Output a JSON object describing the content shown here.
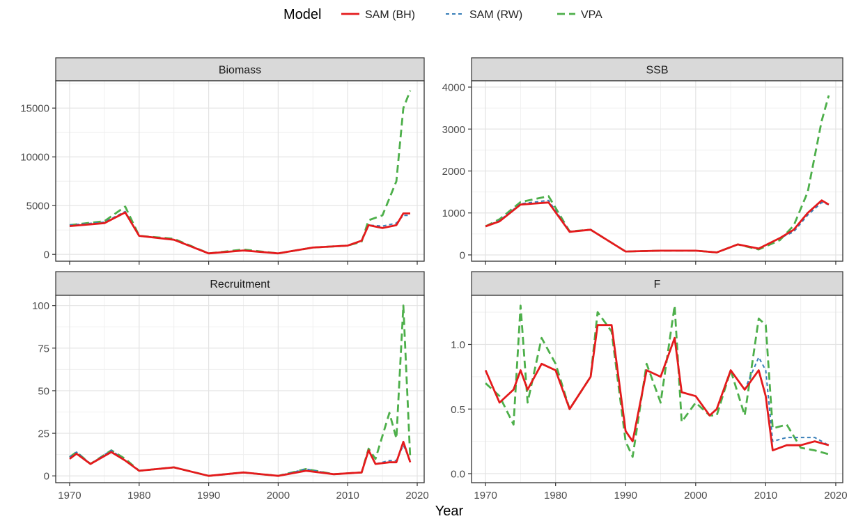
{
  "legend": {
    "title": "Model",
    "position": "top",
    "items": [
      {
        "label": "SAM (BH)",
        "color": "#e41a1c",
        "dash": "solid"
      },
      {
        "label": "SAM (RW)",
        "color": "#377eb8",
        "dash": "dotted"
      },
      {
        "label": "VPA",
        "color": "#4daf4a",
        "dash": "dashed"
      }
    ]
  },
  "xlabel": "Year",
  "chart_data": [
    {
      "type": "line",
      "title": "Biomass",
      "x": [
        1970,
        1975,
        1978,
        1980,
        1985,
        1990,
        1995,
        2000,
        2005,
        2010,
        2012,
        2013,
        2015,
        2017,
        2018,
        2019
      ],
      "xlim": [
        1968,
        2021
      ],
      "xticks": [
        1970,
        1980,
        1990,
        2000,
        2010,
        2020
      ],
      "ylim": [
        -700,
        17800
      ],
      "yticks": [
        0,
        5000,
        10000,
        15000
      ],
      "grid": true,
      "series": [
        {
          "name": "SAM (BH)",
          "values": [
            2900,
            3200,
            4300,
            1900,
            1500,
            100,
            400,
            100,
            700,
            900,
            1400,
            3000,
            2700,
            3000,
            4200,
            4200
          ]
        },
        {
          "name": "SAM (RW)",
          "values": [
            3000,
            3300,
            4400,
            1900,
            1500,
            100,
            400,
            100,
            700,
            900,
            1400,
            3000,
            2900,
            3200,
            4000,
            4000
          ]
        },
        {
          "name": "VPA",
          "values": [
            3000,
            3400,
            4900,
            1900,
            1600,
            100,
            500,
            100,
            700,
            900,
            1300,
            3500,
            4000,
            7500,
            15000,
            16800
          ]
        }
      ]
    },
    {
      "type": "line",
      "title": "SSB",
      "x": [
        1970,
        1972,
        1975,
        1979,
        1982,
        1985,
        1990,
        1995,
        2000,
        2003,
        2006,
        2009,
        2012,
        2014,
        2016,
        2018,
        2019
      ],
      "xlim": [
        1968,
        2021
      ],
      "xticks": [
        1970,
        1980,
        1990,
        2000,
        2010,
        2020
      ],
      "ylim": [
        -150,
        4150
      ],
      "yticks": [
        0,
        1000,
        2000,
        3000,
        4000
      ],
      "grid": true,
      "series": [
        {
          "name": "SAM (BH)",
          "values": [
            680,
            800,
            1200,
            1250,
            550,
            600,
            80,
            100,
            100,
            60,
            250,
            150,
            400,
            600,
            1000,
            1300,
            1200
          ]
        },
        {
          "name": "SAM (RW)",
          "values": [
            680,
            820,
            1220,
            1300,
            560,
            600,
            80,
            100,
            100,
            60,
            250,
            150,
            400,
            550,
            950,
            1250,
            1200
          ]
        },
        {
          "name": "VPA",
          "values": [
            680,
            850,
            1260,
            1400,
            560,
            600,
            80,
            100,
            100,
            60,
            250,
            130,
            350,
            700,
            1500,
            3200,
            3800
          ]
        }
      ]
    },
    {
      "type": "line",
      "title": "Recruitment",
      "x": [
        1970,
        1971,
        1973,
        1976,
        1978,
        1980,
        1985,
        1990,
        1995,
        2000,
        2004,
        2008,
        2012,
        2013,
        2014,
        2016,
        2017,
        2018,
        2019
      ],
      "xlim": [
        1968,
        2021
      ],
      "xticks": [
        1970,
        1980,
        1990,
        2000,
        2010,
        2020
      ],
      "ylim": [
        -4,
        106
      ],
      "yticks": [
        0,
        25,
        50,
        75,
        100
      ],
      "grid": true,
      "series": [
        {
          "name": "SAM (BH)",
          "values": [
            10,
            13,
            7,
            14,
            9,
            3,
            5,
            0,
            2,
            0,
            3,
            1,
            2,
            15,
            7,
            8,
            8,
            20,
            8
          ]
        },
        {
          "name": "SAM (RW)",
          "values": [
            11,
            14,
            7,
            15,
            9,
            3,
            5,
            0,
            2,
            0,
            4,
            1,
            2,
            15,
            7,
            9,
            9,
            18,
            9
          ]
        },
        {
          "name": "VPA",
          "values": [
            11,
            14,
            7,
            15,
            10,
            3,
            5,
            0,
            2,
            0,
            4,
            1,
            2,
            16,
            10,
            37,
            22,
            100,
            10
          ]
        }
      ]
    },
    {
      "type": "line",
      "title": "F",
      "x": [
        1970,
        1972,
        1974,
        1975,
        1976,
        1978,
        1980,
        1982,
        1985,
        1986,
        1988,
        1990,
        1991,
        1993,
        1995,
        1997,
        1998,
        2000,
        2002,
        2003,
        2005,
        2007,
        2009,
        2010,
        2011,
        2013,
        2015,
        2017,
        2019
      ],
      "xlim": [
        1968,
        2021
      ],
      "xticks": [
        1970,
        1980,
        1990,
        2000,
        2010,
        2020
      ],
      "ylim": [
        -0.07,
        1.38
      ],
      "yticks": [
        0.0,
        0.5,
        1.0
      ],
      "ytick_labels": [
        "0.0",
        "0.5",
        "1.0"
      ],
      "grid": true,
      "series": [
        {
          "name": "SAM (BH)",
          "values": [
            0.8,
            0.55,
            0.65,
            0.8,
            0.65,
            0.85,
            0.8,
            0.5,
            0.75,
            1.15,
            1.15,
            0.33,
            0.25,
            0.8,
            0.75,
            1.05,
            0.63,
            0.6,
            0.45,
            0.5,
            0.8,
            0.65,
            0.8,
            0.6,
            0.18,
            0.22,
            0.22,
            0.25,
            0.22
          ]
        },
        {
          "name": "SAM (RW)",
          "values": [
            0.8,
            0.55,
            0.65,
            0.8,
            0.65,
            0.85,
            0.8,
            0.5,
            0.75,
            1.15,
            1.15,
            0.33,
            0.25,
            0.8,
            0.75,
            1.05,
            0.63,
            0.6,
            0.45,
            0.5,
            0.8,
            0.65,
            0.9,
            0.8,
            0.25,
            0.28,
            0.28,
            0.28,
            0.22
          ]
        },
        {
          "name": "VPA",
          "values": [
            0.7,
            0.6,
            0.38,
            1.3,
            0.55,
            1.05,
            0.85,
            0.5,
            0.75,
            1.25,
            1.1,
            0.25,
            0.13,
            0.85,
            0.55,
            1.3,
            0.4,
            0.55,
            0.45,
            0.45,
            0.8,
            0.45,
            1.2,
            1.15,
            0.35,
            0.38,
            0.2,
            0.18,
            0.15
          ]
        }
      ]
    }
  ]
}
